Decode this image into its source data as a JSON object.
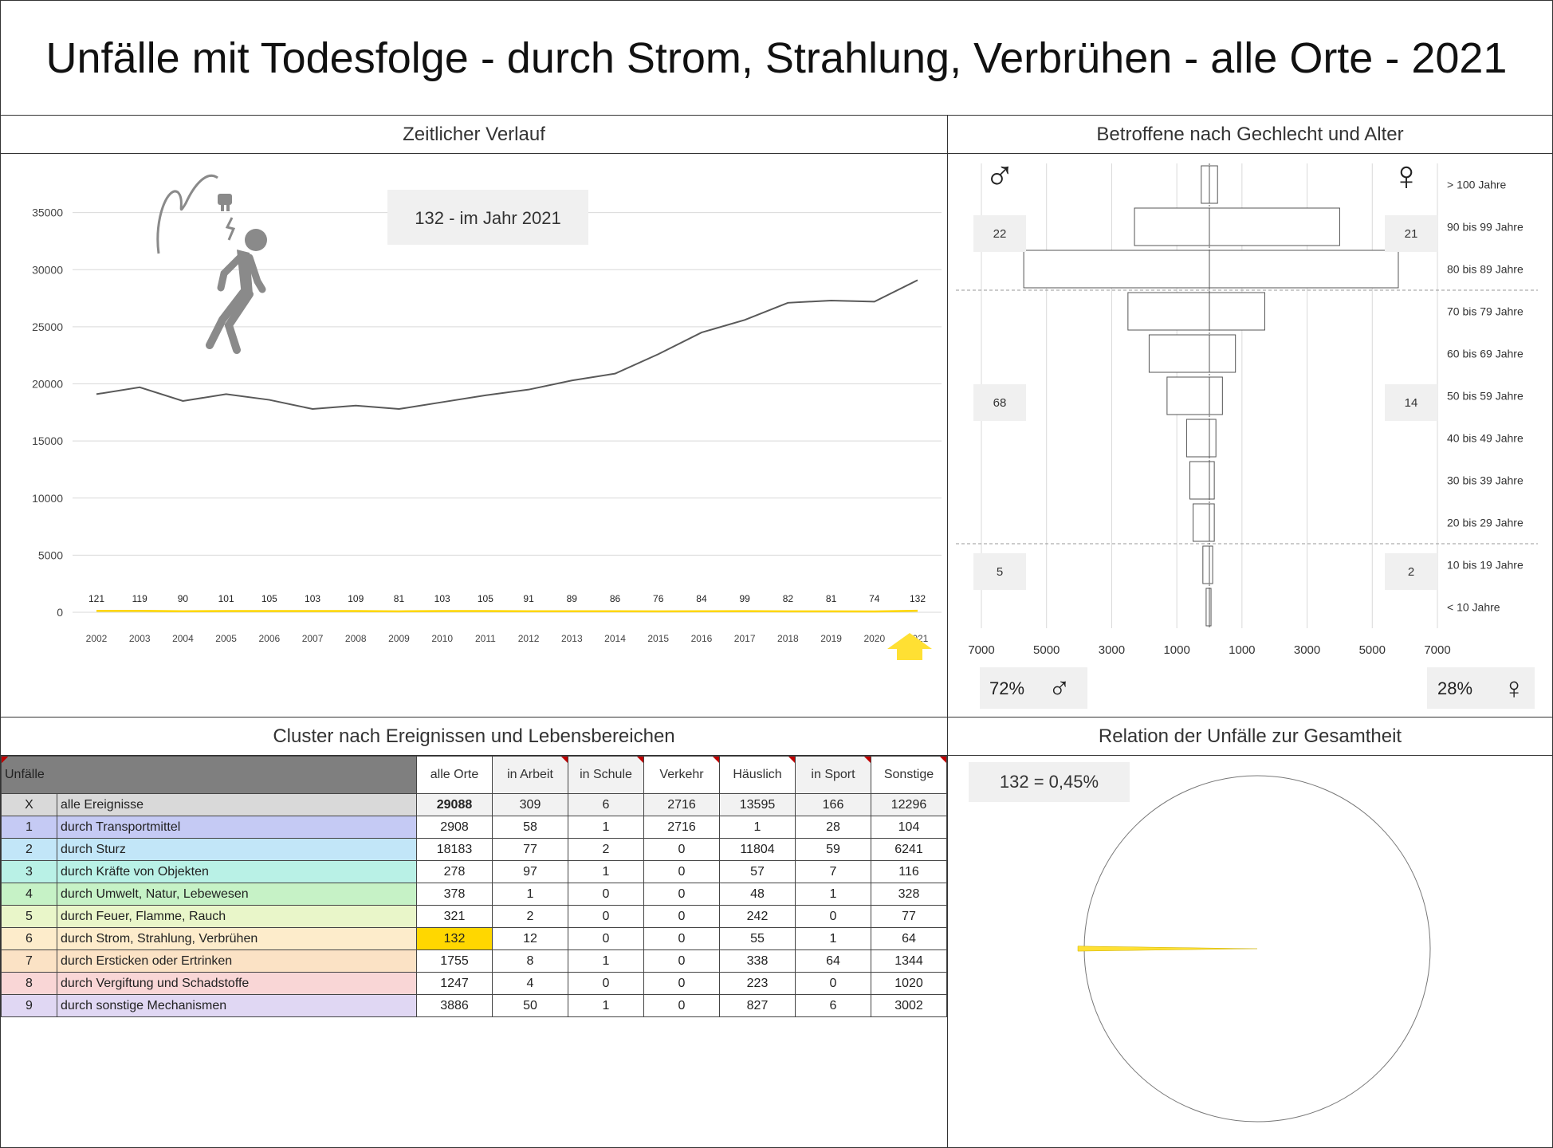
{
  "title": "Unfälle mit Todesfolge - durch Strom, Strahlung, Verbrühen - alle Orte - 2021",
  "panels": {
    "timeline": "Zeitlicher Verlauf",
    "pyramid": "Betroffene nach Gechlecht und Alter",
    "cluster": "Cluster nach Ereignissen und Lebensbereichen",
    "relation": "Relation der Unfälle zur Gesamtheit"
  },
  "callout": "132 - im Jahr 2021",
  "relation_label": "132 =  0,45%",
  "colors": {
    "highlight": "#ffd700",
    "line": "#595959",
    "arrow": "#ffe033"
  },
  "chart_data": [
    {
      "type": "line",
      "x": [
        "2002",
        "2003",
        "2004",
        "2005",
        "2006",
        "2007",
        "2008",
        "2009",
        "2010",
        "2011",
        "2012",
        "2013",
        "2014",
        "2015",
        "2016",
        "2017",
        "2018",
        "2019",
        "2020",
        "2021"
      ],
      "series": [
        {
          "values": [
            19100,
            19700,
            18500,
            19100,
            18600,
            17800,
            18100,
            17800,
            18400,
            19000,
            19500,
            20300,
            20900,
            22600,
            24500,
            25600,
            27100,
            27300,
            27200,
            29088
          ]
        },
        {
          "values": [
            121,
            119,
            90,
            101,
            105,
            103,
            109,
            81,
            103,
            105,
            91,
            89,
            86,
            76,
            84,
            99,
            82,
            81,
            74,
            132
          ],
          "labels": [
            "121",
            "119",
            "90",
            "101",
            "105",
            "103",
            "109",
            "81",
            "103",
            "105",
            "91",
            "89",
            "86",
            "76",
            "84",
            "99",
            "82",
            "81",
            "74",
            "132"
          ]
        }
      ],
      "yticks": [
        "0",
        "5000",
        "10000",
        "15000",
        "20000",
        "25000",
        "30000",
        "35000"
      ],
      "ylim": [
        0,
        37000
      ],
      "grid": true
    },
    {
      "type": "bar",
      "categories": [
        "> 100 Jahre",
        "90 bis 99 Jahre",
        "80 bis 89 Jahre",
        "70 bis 79 Jahre",
        "60 bis 69 Jahre",
        "50 bis 59 Jahre",
        "40 bis 49 Jahre",
        "30 bis 39 Jahre",
        "20 bis 29 Jahre",
        "10 bis 19 Jahre",
        "< 10 Jahre"
      ],
      "series": [
        {
          "values": [
            250,
            2300,
            5700,
            2500,
            1850,
            1300,
            700,
            600,
            500,
            200,
            100
          ]
        },
        {
          "values": [
            250,
            4000,
            5800,
            1700,
            800,
            400,
            200,
            150,
            150,
            100,
            50
          ]
        }
      ],
      "xticks": [
        "7000",
        "5000",
        "3000",
        "1000",
        "1000",
        "3000",
        "5000",
        "7000"
      ],
      "xlim": [
        -7000,
        7000
      ],
      "male_boxes": [
        "22",
        "68",
        "5"
      ],
      "female_boxes": [
        "21",
        "14",
        "2"
      ],
      "male_pct": "72%",
      "female_pct": "28%",
      "male_symbol": "♂",
      "female_symbol": "♀"
    },
    {
      "type": "pie",
      "values": [
        132,
        28956
      ],
      "labels": [
        "132",
        "29088"
      ]
    }
  ],
  "table": {
    "corner": "Unfälle",
    "columns": [
      "alle Orte",
      "in Arbeit",
      "in Schule",
      "Verkehr",
      "Häuslich",
      "in Sport",
      "Sonstige"
    ],
    "rows": [
      {
        "id": "X",
        "label": "alle Ereignisse",
        "color": "#d9d9d9",
        "values": [
          "29088",
          "309",
          "6",
          "2716",
          "13595",
          "166",
          "12296"
        ]
      },
      {
        "id": "1",
        "label": "durch Transportmittel",
        "color": "#c5caf4",
        "values": [
          "2908",
          "58",
          "1",
          "2716",
          "1",
          "28",
          "104"
        ]
      },
      {
        "id": "2",
        "label": "durch Sturz",
        "color": "#c2e6f8",
        "values": [
          "18183",
          "77",
          "2",
          "0",
          "11804",
          "59",
          "6241"
        ]
      },
      {
        "id": "3",
        "label": "durch Kräfte von Objekten",
        "color": "#b9f1e6",
        "values": [
          "278",
          "97",
          "1",
          "0",
          "57",
          "7",
          "116"
        ]
      },
      {
        "id": "4",
        "label": "durch Umwelt, Natur, Lebewesen",
        "color": "#c6f2c6",
        "values": [
          "378",
          "1",
          "0",
          "0",
          "48",
          "1",
          "328"
        ]
      },
      {
        "id": "5",
        "label": "durch Feuer, Flamme, Rauch",
        "color": "#e9f6c9",
        "values": [
          "321",
          "2",
          "0",
          "0",
          "242",
          "0",
          "77"
        ]
      },
      {
        "id": "6",
        "label": "durch Strom, Strahlung, Verbrühen",
        "color": "#fdeccb",
        "values": [
          "132",
          "12",
          "0",
          "0",
          "55",
          "1",
          "64"
        ]
      },
      {
        "id": "7",
        "label": "durch Ersticken oder Ertrinken",
        "color": "#fbe2c5",
        "values": [
          "1755",
          "8",
          "1",
          "0",
          "338",
          "64",
          "1344"
        ]
      },
      {
        "id": "8",
        "label": "durch Vergiftung und Schadstoffe",
        "color": "#f9d6d6",
        "values": [
          "1247",
          "4",
          "0",
          "0",
          "223",
          "0",
          "1020"
        ]
      },
      {
        "id": "9",
        "label": "durch sonstige Mechanismen",
        "color": "#e0d7f3",
        "values": [
          "3886",
          "50",
          "1",
          "0",
          "827",
          "6",
          "3002"
        ]
      }
    ]
  }
}
